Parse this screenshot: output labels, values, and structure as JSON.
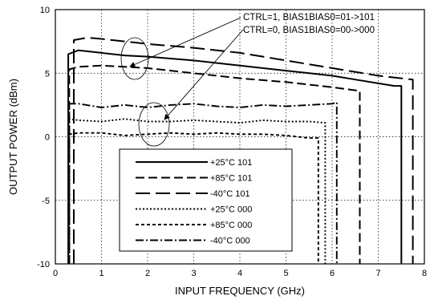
{
  "chart_data": {
    "type": "line",
    "title": "",
    "xlabel": "INPUT FREQUENCY (GHz)",
    "ylabel": "OUTPUT POWER (dBm)",
    "xlim": [
      0,
      8
    ],
    "ylim": [
      -10,
      10
    ],
    "x_ticks": [
      "0",
      "1",
      "2",
      "3",
      "4",
      "5",
      "6",
      "7",
      "8"
    ],
    "y_ticks": [
      "10",
      "5",
      "0",
      "-5",
      "-10"
    ],
    "grid": true,
    "legend_position": "bottom-center",
    "annotations": [
      "CTRL=1, BIAS1BIAS0=01->101",
      "CTRL=0, BIAS1BIAS0=00->000"
    ],
    "series": [
      {
        "name": "+25°C 101",
        "dash": "solid",
        "x": [
          0.28,
          0.5,
          1.0,
          1.5,
          2.0,
          3.0,
          4.0,
          5.0,
          6.0,
          6.5,
          7.0,
          7.35,
          7.5
        ],
        "y": [
          6.5,
          6.8,
          6.6,
          6.4,
          6.3,
          6.0,
          5.6,
          5.2,
          4.8,
          4.5,
          4.2,
          4.0,
          4.0
        ]
      },
      {
        "name": "+85°C 101",
        "dash": "long-dash",
        "x": [
          0.3,
          0.5,
          1.0,
          1.5,
          2.0,
          3.0,
          4.0,
          5.0,
          6.0,
          6.6
        ],
        "y": [
          5.3,
          5.5,
          5.6,
          5.5,
          5.4,
          5.0,
          4.6,
          4.3,
          3.9,
          3.6
        ]
      },
      {
        "name": "-40°C 101",
        "dash": "very-long-dash",
        "x": [
          0.4,
          0.7,
          1.0,
          1.5,
          2.0,
          3.0,
          4.0,
          5.0,
          6.0,
          7.0,
          7.5,
          7.75
        ],
        "y": [
          7.6,
          7.8,
          7.7,
          7.5,
          7.3,
          7.0,
          6.6,
          6.0,
          5.4,
          4.8,
          4.6,
          4.5
        ]
      },
      {
        "name": "+25°C 000",
        "dash": "dotted",
        "x": [
          0.3,
          0.5,
          1.0,
          1.5,
          2.0,
          2.5,
          3.0,
          3.5,
          4.0,
          4.5,
          5.0,
          5.5,
          5.85
        ],
        "y": [
          1.4,
          1.3,
          1.2,
          1.4,
          1.2,
          1.2,
          1.3,
          1.2,
          1.1,
          1.3,
          1.2,
          1.2,
          1.1
        ]
      },
      {
        "name": "+85°C 000",
        "dash": "short-dash",
        "x": [
          0.3,
          0.5,
          1.0,
          1.5,
          2.0,
          2.5,
          3.0,
          3.5,
          4.0,
          4.5,
          5.0,
          5.5,
          5.7
        ],
        "y": [
          0.2,
          0.3,
          0.3,
          0.1,
          0.2,
          0.3,
          0.2,
          0.3,
          0.2,
          0.2,
          0.1,
          -0.1,
          -0.1
        ]
      },
      {
        "name": "-40°C 000",
        "dash": "dash-dot",
        "x": [
          0.3,
          0.5,
          1.0,
          1.5,
          2.0,
          2.5,
          3.0,
          3.5,
          4.0,
          4.5,
          5.0,
          5.5,
          6.0,
          6.1
        ],
        "y": [
          2.6,
          2.6,
          2.3,
          2.5,
          2.3,
          2.5,
          2.6,
          2.4,
          2.3,
          2.5,
          2.4,
          2.5,
          2.6,
          2.7
        ]
      }
    ]
  }
}
